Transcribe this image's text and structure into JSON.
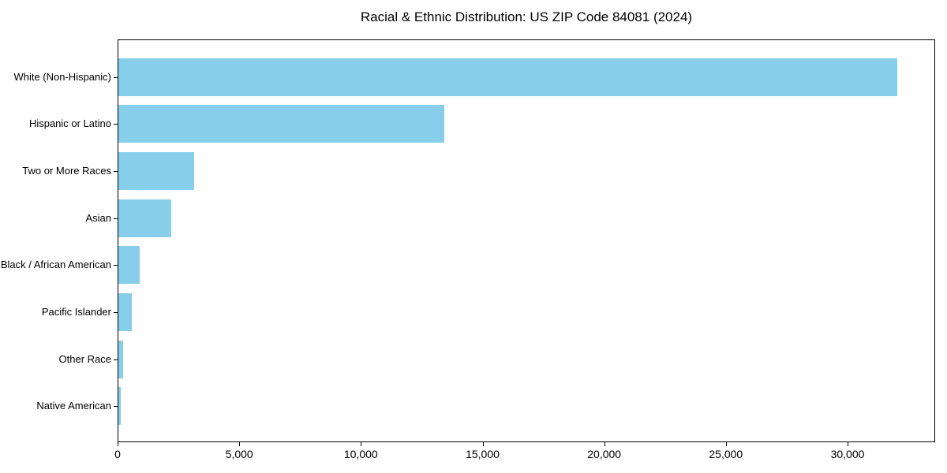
{
  "chart_data": {
    "type": "bar",
    "orientation": "horizontal",
    "title": "Racial & Ethnic Distribution: US ZIP Code 84081 (2024)",
    "categories": [
      "White (Non-Hispanic)",
      "Hispanic or Latino",
      "Two or More Races",
      "Asian",
      "Black / African American",
      "Pacific Islander",
      "Other Race",
      "Native American"
    ],
    "values": [
      32000,
      13400,
      3100,
      2175,
      880,
      540,
      205,
      95
    ],
    "xlabel": "",
    "ylabel": "",
    "xlim": [
      0,
      33600
    ],
    "x_ticks": [
      0,
      5000,
      10000,
      15000,
      20000,
      25000,
      30000
    ],
    "x_tick_labels": [
      "0",
      "5,000",
      "10,000",
      "15,000",
      "20,000",
      "25,000",
      "30,000"
    ],
    "bar_color": "#87CEEB",
    "axis_color": "#000000",
    "background_color": "#ffffff",
    "grid": false,
    "legend": "none"
  }
}
